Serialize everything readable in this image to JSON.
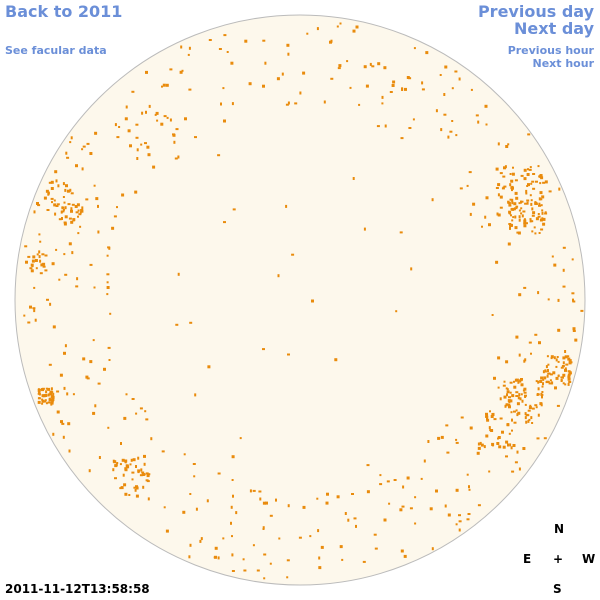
{
  "nav": {
    "back_year": "Back to 2011",
    "facular_data": "See facular data",
    "previous_day": "Previous day",
    "next_day": "Next day",
    "previous_hour": "Previous hour",
    "next_hour": "Next hour"
  },
  "timestamp": "2011-11-12T13:58:58",
  "compass": {
    "north": "N",
    "east": "E",
    "center": "+",
    "west": "W",
    "south": "S"
  }
}
